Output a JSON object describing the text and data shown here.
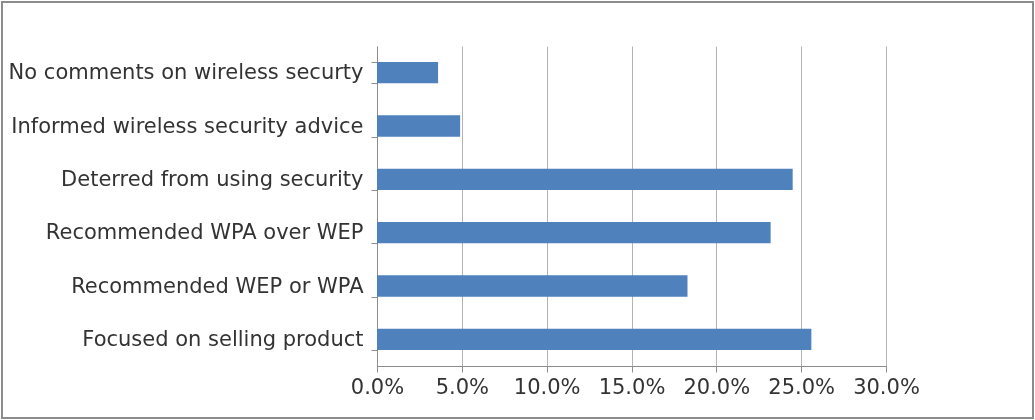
{
  "chart_data": {
    "type": "bar",
    "orientation": "horizontal",
    "categories": [
      "No comments on wireless securty",
      "Informed wireless security advice",
      "Deterred from using security",
      "Recommended WPA over WEP",
      "Recommended WEP or WPA",
      "Focused on selling product"
    ],
    "values": [
      3.6,
      4.9,
      24.5,
      23.2,
      18.3,
      25.6
    ],
    "color": "#4f81bd",
    "xlim": [
      0,
      30
    ],
    "xticks": [
      {
        "value": 0,
        "label": "0.0%"
      },
      {
        "value": 5,
        "label": "5.0%"
      },
      {
        "value": 10,
        "label": "10.0%"
      },
      {
        "value": 15,
        "label": "15.0%"
      },
      {
        "value": 20,
        "label": "20.0%"
      },
      {
        "value": 25,
        "label": "25.0%"
      },
      {
        "value": 30,
        "label": "30.0%"
      }
    ],
    "grid": "x"
  }
}
